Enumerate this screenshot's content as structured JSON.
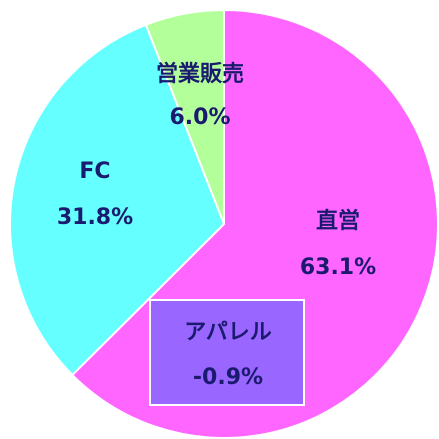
{
  "chart_data": {
    "type": "pie",
    "categories": [
      "直営",
      "アパレル",
      "FC",
      "営業販売"
    ],
    "values": [
      63.1,
      -0.9,
      31.8,
      6.0
    ],
    "value_labels": [
      "63.1%",
      "-0.9%",
      "31.8%",
      "6.0%"
    ],
    "colors": [
      "#ff66ff",
      "#9966ff",
      "#66ffff",
      "#b3ff99"
    ]
  }
}
